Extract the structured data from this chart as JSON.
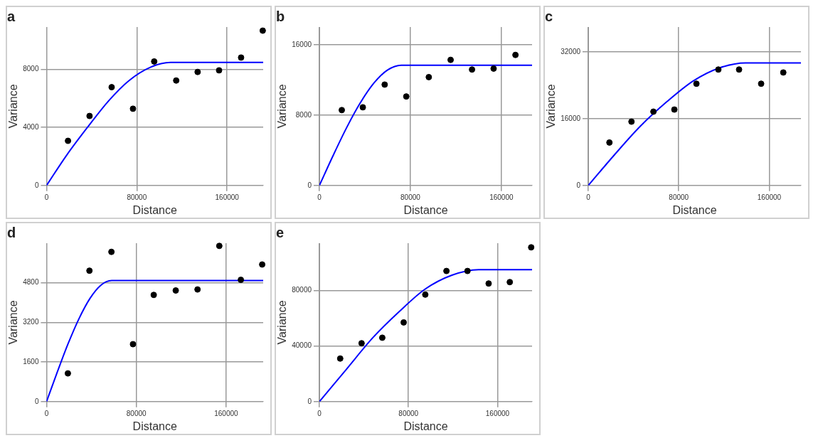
{
  "chart_data": [
    {
      "type": "scatter",
      "title": "a",
      "xlabel": "Distance",
      "ylabel": "Variance",
      "xlim": [
        0,
        192000
      ],
      "xticks": [
        0,
        80000,
        160000
      ],
      "ylim": [
        0,
        10900
      ],
      "yticks": [
        0,
        4000,
        8000
      ],
      "grid": true,
      "series": [
        {
          "color": "#000000",
          "marker": "circle",
          "x": [
            19000,
            38100,
            57700,
            76600,
            95400,
            114900,
            133900,
            152900,
            172400,
            191600
          ],
          "values": [
            3070,
            4780,
            6760,
            5280,
            8530,
            7220,
            7810,
            7920,
            8800,
            10650
          ]
        },
        {
          "type": "line",
          "color": "#0000ff",
          "x": [
            0,
            18000,
            37000,
            55000,
            73000,
            92000,
            110000,
            192000
          ],
          "values": [
            0,
            2100,
            4070,
            5820,
            7210,
            8130,
            8460,
            8460
          ]
        }
      ]
    },
    {
      "type": "scatter",
      "title": "b",
      "xlabel": "Distance",
      "ylabel": "Variance",
      "xlim": [
        0,
        187000
      ],
      "xticks": [
        0,
        80000,
        160000
      ],
      "ylim": [
        0,
        18000
      ],
      "yticks": [
        0,
        8000,
        16000
      ],
      "grid": true,
      "series": [
        {
          "color": "#000000",
          "marker": "circle",
          "x": [
            19700,
            38200,
            57400,
            76400,
            96200,
            115400,
            134200,
            153200,
            172400
          ],
          "values": [
            8560,
            8880,
            11460,
            10110,
            12310,
            14270,
            13170,
            13280,
            14830
          ]
        },
        {
          "type": "line",
          "color": "#0000ff",
          "x": [
            0,
            12000,
            24000,
            36000,
            48000,
            60000,
            72000,
            187000
          ],
          "values": [
            0,
            3380,
            6580,
            9390,
            11640,
            13120,
            13660,
            13660
          ]
        }
      ]
    },
    {
      "type": "scatter",
      "title": "c",
      "xlabel": "Distance",
      "ylabel": "Variance",
      "xlim": [
        0,
        188000
      ],
      "xticks": [
        0,
        80000,
        160000
      ],
      "ylim": [
        0,
        38000
      ],
      "yticks": [
        0,
        16000,
        32000
      ],
      "grid": true,
      "series": [
        {
          "color": "#000000",
          "marker": "circle",
          "x": [
            18700,
            38200,
            57600,
            76100,
            95600,
            115000,
            133300,
            152800,
            172400
          ],
          "values": [
            10300,
            15300,
            17700,
            18200,
            24400,
            27800,
            27800,
            24400,
            27100
          ]
        },
        {
          "type": "line",
          "color": "#0000ff",
          "x": [
            0,
            23000,
            46000,
            70000,
            93000,
            116000,
            139000,
            188000
          ],
          "values": [
            0,
            7300,
            14200,
            20200,
            25100,
            28200,
            29400,
            29400
          ]
        }
      ]
    },
    {
      "type": "scatter",
      "title": "d",
      "xlabel": "Distance",
      "ylabel": "Variance",
      "xlim": [
        0,
        193000
      ],
      "xticks": [
        0,
        80000,
        160000
      ],
      "ylim": [
        0,
        6400
      ],
      "yticks": [
        0,
        1600,
        3200,
        4800
      ],
      "grid": true,
      "series": [
        {
          "color": "#000000",
          "marker": "circle",
          "x": [
            19000,
            38200,
            57800,
            77000,
            95500,
            115100,
            134500,
            153900,
            173100,
            192100
          ],
          "values": [
            1140,
            5290,
            6050,
            2320,
            4310,
            4490,
            4530,
            6290,
            4920,
            5540
          ]
        },
        {
          "type": "line",
          "color": "#0000ff",
          "x": [
            0,
            9700,
            19300,
            29000,
            38700,
            48300,
            58000,
            193000
          ],
          "values": [
            0,
            1210,
            2350,
            3360,
            4170,
            4700,
            4890,
            4890
          ]
        }
      ]
    },
    {
      "type": "scatter",
      "title": "e",
      "xlabel": "Distance",
      "ylabel": "Variance",
      "xlim": [
        0,
        191000
      ],
      "xticks": [
        0,
        80000,
        160000
      ],
      "ylim": [
        0,
        114000
      ],
      "yticks": [
        0,
        40000,
        80000
      ],
      "grid": true,
      "series": [
        {
          "color": "#000000",
          "marker": "circle",
          "x": [
            18700,
            37900,
            56500,
            75700,
            95100,
            114100,
            133000,
            152000,
            171000,
            190200
          ],
          "values": [
            31000,
            42000,
            46000,
            57000,
            77000,
            94000,
            94000,
            85000,
            86000,
            111000
          ]
        },
        {
          "type": "line",
          "color": "#0000ff",
          "x": [
            0,
            24000,
            48000,
            72000,
            95000,
            119000,
            143000,
            191000
          ],
          "values": [
            0,
            23000,
            46000,
            65000,
            81000,
            91000,
            95000,
            95000
          ]
        }
      ]
    }
  ]
}
